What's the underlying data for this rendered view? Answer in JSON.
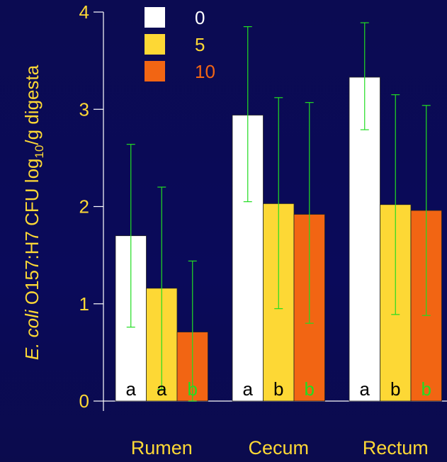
{
  "chart_data": {
    "type": "bar",
    "categories": [
      "Rumen",
      "Cecum",
      "Rectum"
    ],
    "series": [
      {
        "name": "0",
        "color": "#ffffff",
        "label_color": "#ffffff",
        "values": [
          1.7,
          2.94,
          3.33
        ],
        "error_low": [
          0.76,
          2.05,
          2.79
        ],
        "error_high": [
          2.64,
          3.85,
          3.89
        ],
        "letters": [
          "a",
          "a",
          "a"
        ],
        "letter_colors": [
          "#000000",
          "#000000",
          "#000000"
        ]
      },
      {
        "name": "5",
        "color": "#fdd835",
        "label_color": "#fdd835",
        "values": [
          1.16,
          2.03,
          2.02
        ],
        "error_low": [
          0.12,
          0.95,
          0.89
        ],
        "error_high": [
          2.2,
          3.12,
          3.15
        ],
        "letters": [
          "a",
          "b",
          "b"
        ],
        "letter_colors": [
          "#000000",
          "#000000",
          "#000000"
        ]
      },
      {
        "name": "10",
        "color": "#f26513",
        "label_color": "#f26513",
        "values": [
          0.71,
          1.92,
          1.96
        ],
        "error_low": [
          0.0,
          0.8,
          0.88
        ],
        "error_high": [
          1.44,
          3.07,
          3.04
        ],
        "letters": [
          "b",
          "b",
          "b"
        ],
        "letter_colors": [
          "#22dd22",
          "#22dd22",
          "#22dd22"
        ]
      }
    ],
    "ylim": [
      0,
      4
    ],
    "yticks": [
      "0",
      "1",
      "2",
      "3",
      "4"
    ],
    "ylabel": {
      "italic_part": "E. coli",
      "normal_part": " O157:H7 CFU log",
      "subscript": "10",
      "suffix": "/g digesta"
    },
    "xlabel": "",
    "title": "",
    "legend_position": "top",
    "grid": false,
    "colors": {
      "text": "#fdd835",
      "axis": "#ffffff",
      "error_bar": "#22dd22",
      "background": "#0a0a55"
    }
  }
}
